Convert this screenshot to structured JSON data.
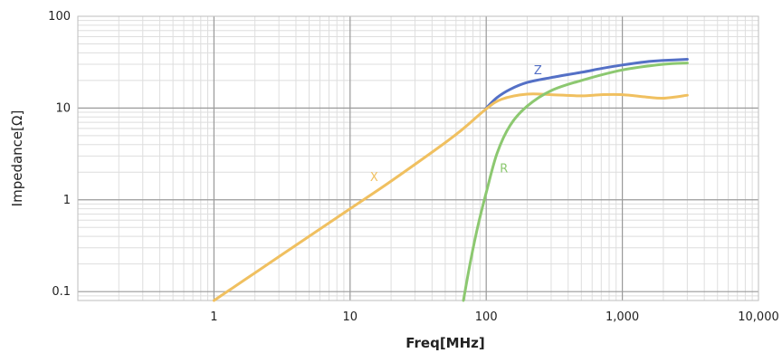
{
  "chart_data": {
    "type": "line",
    "xlabel": "Freq[MHz]",
    "ylabel": "Impedance[Ω]",
    "x_scale": "log",
    "y_scale": "log",
    "xlim": [
      0.1,
      10000
    ],
    "ylim": [
      0.08,
      100
    ],
    "x_ticks": [
      {
        "value": 1,
        "label": "1"
      },
      {
        "value": 10,
        "label": "10"
      },
      {
        "value": 100,
        "label": "100"
      },
      {
        "value": 1000,
        "label": "1,000"
      },
      {
        "value": 10000,
        "label": "10,000"
      }
    ],
    "y_ticks": [
      {
        "value": 0.1,
        "label": "0.1"
      },
      {
        "value": 1,
        "label": "1"
      },
      {
        "value": 10,
        "label": "10"
      },
      {
        "value": 100,
        "label": "100"
      }
    ],
    "grid": true,
    "series": [
      {
        "name": "Z",
        "color": "#5470c6",
        "label_point": [
          240,
          23.5
        ],
        "x": [
          100,
          120,
          150,
          200,
          300,
          500,
          700,
          1000,
          1500,
          2000,
          3000
        ],
        "y": [
          10,
          13,
          16,
          19,
          21.5,
          24.5,
          27,
          29.5,
          32,
          33,
          34
        ]
      },
      {
        "name": "X",
        "color": "#f0c060",
        "label_point": [
          15,
          1.6
        ],
        "x": [
          1,
          2,
          5,
          10,
          20,
          50,
          70,
          100,
          130,
          200,
          300,
          500,
          700,
          1000,
          1500,
          2000,
          3000
        ],
        "y": [
          0.08,
          0.16,
          0.4,
          0.8,
          1.6,
          4.2,
          6.2,
          9.8,
          12.5,
          14.2,
          14,
          13.6,
          14,
          14,
          13.2,
          12.8,
          13.8
        ]
      },
      {
        "name": "R",
        "color": "#8cc870",
        "label_point": [
          135,
          2
        ],
        "x": [
          68,
          75,
          85,
          100,
          120,
          150,
          200,
          300,
          500,
          1000,
          2000,
          3000
        ],
        "y": [
          0.08,
          0.18,
          0.45,
          1.2,
          3.2,
          6.5,
          10.5,
          15.5,
          20,
          26,
          30,
          31
        ]
      }
    ]
  }
}
